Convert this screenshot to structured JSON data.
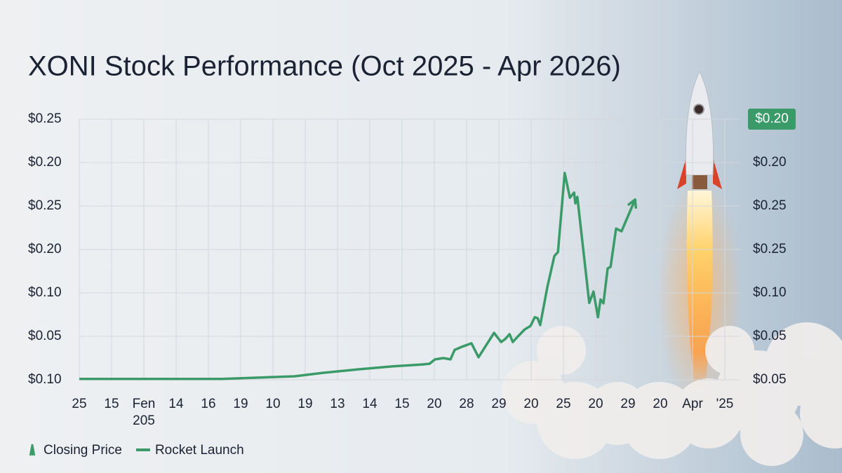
{
  "chart_data": {
    "type": "line",
    "title": "XONI Stock Performance (Oct 2025 - Apr 2026)",
    "xlim": [
      0,
      20
    ],
    "xticks": [
      {
        "value": 0,
        "label": "25"
      },
      {
        "value": 1,
        "label": "15"
      },
      {
        "value": 2,
        "label": "Fen 205"
      },
      {
        "value": 3,
        "label": "14"
      },
      {
        "value": 4,
        "label": "16"
      },
      {
        "value": 5,
        "label": "19"
      },
      {
        "value": 6,
        "label": "10"
      },
      {
        "value": 7,
        "label": "19"
      },
      {
        "value": 8,
        "label": "13"
      },
      {
        "value": 9,
        "label": "14"
      },
      {
        "value": 10,
        "label": "15"
      },
      {
        "value": 11,
        "label": "20"
      },
      {
        "value": 12,
        "label": "28"
      },
      {
        "value": 13,
        "label": "29"
      },
      {
        "value": 14,
        "label": "20"
      },
      {
        "value": 15,
        "label": "25"
      },
      {
        "value": 16,
        "label": "20"
      },
      {
        "value": 17,
        "label": "29"
      },
      {
        "value": 18,
        "label": "20"
      },
      {
        "value": 19,
        "label": "Apr"
      },
      {
        "value": 20,
        "label": "'25"
      }
    ],
    "ylim": [
      0,
      6
    ],
    "yticks": [
      {
        "value": 0,
        "label": "$0.10"
      },
      {
        "value": 1,
        "label": "$0.05"
      },
      {
        "value": 2,
        "label": "$0.10"
      },
      {
        "value": 3,
        "label": "$0.20"
      },
      {
        "value": 4,
        "label": "$0.25"
      },
      {
        "value": 5,
        "label": "$0.20"
      },
      {
        "value": 6,
        "label": "$0.25"
      }
    ],
    "y2lim": [
      0,
      6
    ],
    "y2ticks": [
      {
        "value": 0,
        "label": "$0.05"
      },
      {
        "value": 1,
        "label": "$0.05"
      },
      {
        "value": 2,
        "label": "$0.10"
      },
      {
        "value": 3,
        "label": "$0.25"
      },
      {
        "value": 4,
        "label": "$0.25"
      },
      {
        "value": 5,
        "label": "$0.20"
      }
    ],
    "y2_badge": {
      "value": 6,
      "label": "$0.20"
    },
    "grid": true,
    "x": [
      0,
      4.41,
      6.67,
      7.54,
      8.63,
      9.72,
      10.59,
      10.85,
      11.02,
      11.28,
      11.5,
      11.63,
      11.89,
      12.15,
      12.37,
      12.85,
      13.07,
      13.2,
      13.33,
      13.43,
      13.63,
      13.8,
      13.98,
      14.11,
      14.2,
      14.28,
      14.5,
      14.72,
      14.83,
      15.04,
      15.2,
      15.33,
      15.37,
      15.43,
      15.8,
      15.93,
      16.07,
      16.15,
      16.24,
      16.37,
      16.46,
      16.63,
      16.8,
      17.22
    ],
    "series": [
      {
        "color": "#3a9a68",
        "values": [
          0.02,
          0.02,
          0.08,
          0.16,
          0.24,
          0.31,
          0.35,
          0.37,
          0.47,
          0.5,
          0.47,
          0.69,
          0.77,
          0.84,
          0.52,
          1.08,
          0.87,
          0.94,
          1.05,
          0.87,
          1.03,
          1.16,
          1.24,
          1.44,
          1.42,
          1.26,
          2.13,
          2.85,
          2.94,
          4.76,
          4.19,
          4.31,
          4.06,
          4.21,
          1.77,
          2.03,
          1.44,
          1.85,
          1.76,
          2.56,
          2.6,
          3.48,
          3.42,
          4.15
        ]
      }
    ],
    "legend": [
      {
        "label": "Closing Price",
        "icon": "rocket"
      },
      {
        "label": "Rocket Launch",
        "icon": "line"
      }
    ]
  }
}
